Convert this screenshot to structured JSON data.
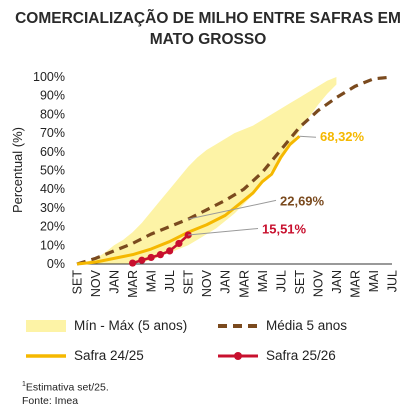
{
  "title_line1": "COMERCIALIZAÇÃO DE MILHO ENTRE SAFRAS EM",
  "title_line2": "MATO GROSSO",
  "chart_data": {
    "type": "line",
    "ylabel": "Percentual (%)",
    "y_ticks": [
      "0%",
      "10%",
      "20%",
      "30%",
      "40%",
      "50%",
      "60%",
      "70%",
      "80%",
      "90%",
      "100%"
    ],
    "ylim": [
      0,
      100
    ],
    "x_ticks": [
      "SET",
      "NOV",
      "JAN",
      "MAR",
      "MAI",
      "JUL",
      "SET",
      "NOV",
      "JAN",
      "MAR",
      "MAI",
      "JUL",
      "SET",
      "NOV",
      "JAN",
      "MAR",
      "MAI",
      "JUL"
    ],
    "grid": false,
    "colors": {
      "band": "#fdf3a6",
      "media": "#7a4a1e",
      "safra2425": "#f5b800",
      "safra2526": "#c8102e",
      "leader": "#9a9a9a"
    },
    "band": {
      "name": "Mín - Máx (5 anos)",
      "x": [
        0,
        1,
        2,
        3,
        4,
        5,
        6,
        7,
        8,
        9,
        10,
        11,
        12,
        13,
        14,
        15,
        16,
        17,
        18,
        19,
        20,
        21,
        22,
        23,
        24,
        25,
        26,
        27,
        28
      ],
      "min": [
        0,
        0,
        0,
        0,
        0,
        0,
        0,
        1,
        2,
        4,
        6,
        8,
        10,
        13,
        16,
        19,
        23,
        27,
        32,
        37,
        43,
        50,
        57,
        64,
        71,
        78,
        85,
        91,
        96
      ],
      "max": [
        0,
        1,
        3,
        6,
        10,
        13,
        17,
        22,
        28,
        34,
        40,
        46,
        52,
        57,
        61,
        64,
        67,
        70,
        72,
        74,
        77,
        80,
        83,
        86,
        89,
        92,
        95,
        98,
        100
      ]
    },
    "series": [
      {
        "name": "Média 5 anos",
        "x": [
          0,
          2,
          4,
          6,
          8,
          10,
          12,
          14,
          16,
          18,
          20,
          22,
          24,
          26,
          28,
          30,
          32,
          34
        ],
        "values": [
          0,
          3,
          7,
          11,
          16,
          20,
          24,
          29,
          34,
          40,
          49,
          61,
          73,
          82,
          89,
          95,
          99,
          100
        ]
      },
      {
        "name": "Safra 24/25",
        "x": [
          0,
          2,
          4,
          6,
          8,
          10,
          12,
          14,
          16,
          18,
          19,
          20,
          21,
          22,
          23,
          24
        ],
        "values": [
          0,
          1,
          3,
          5,
          8,
          12,
          17,
          21,
          26,
          34,
          38,
          44,
          48,
          57,
          64,
          68.32
        ]
      },
      {
        "name": "Safra 25/26",
        "x": [
          6,
          7,
          8,
          9,
          10,
          11,
          12
        ],
        "values": [
          0.5,
          2,
          3.5,
          5,
          7,
          11,
          15.51
        ]
      }
    ],
    "annotations": [
      {
        "text": "68,32%",
        "series": "Safra 24/25"
      },
      {
        "text": "22,69%",
        "series": "Média 5 anos"
      },
      {
        "text": "15,51%",
        "series": "Safra 25/26"
      }
    ]
  },
  "legend": {
    "band": "Mín - Máx (5 anos)",
    "media": "Média 5 anos",
    "safra2425": "Safra 24/25",
    "safra2526": "Safra 25/26"
  },
  "footnote": {
    "sup": "1",
    "line1": "Estimativa set/25.",
    "line2": "Fonte: Imea"
  }
}
